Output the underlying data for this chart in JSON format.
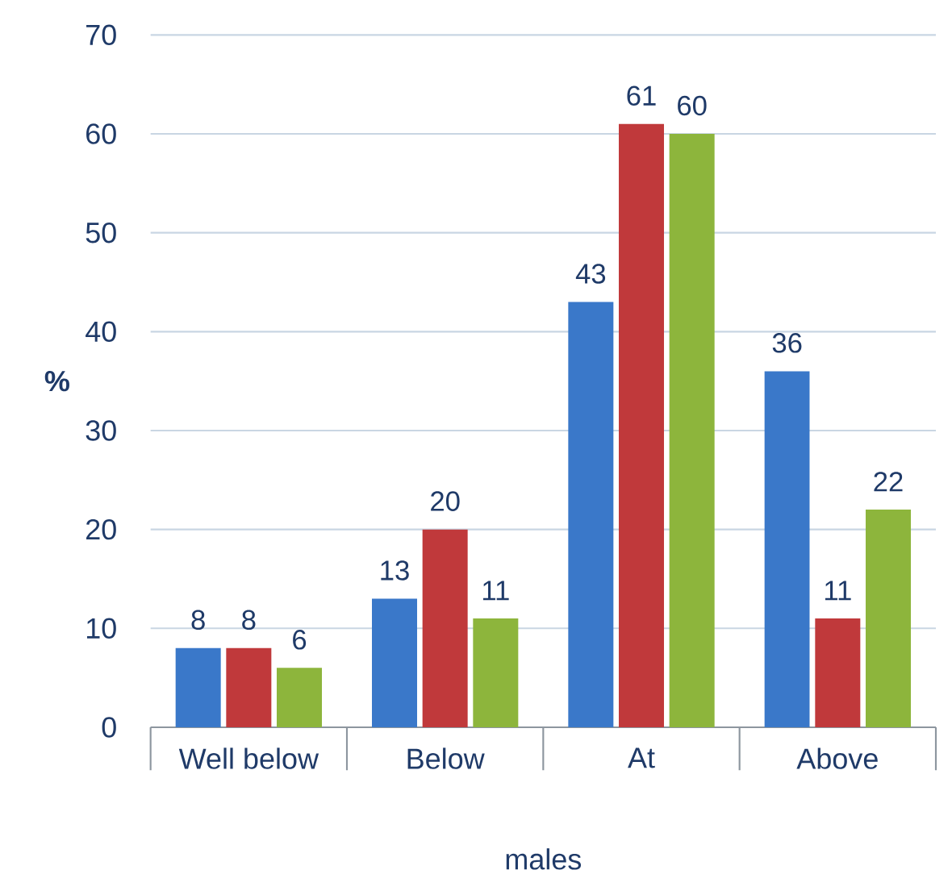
{
  "chart_data": {
    "type": "bar",
    "xlabel": "males",
    "ylabel": "%",
    "categories": [
      "Well below",
      "Below",
      "At",
      "Above"
    ],
    "series": [
      {
        "color": "#3a78c9",
        "values": [
          8,
          13,
          43,
          36
        ]
      },
      {
        "color": "#c0393b",
        "values": [
          8,
          20,
          61,
          11
        ]
      },
      {
        "color": "#8db53c",
        "values": [
          6,
          11,
          60,
          22
        ]
      }
    ],
    "ylim": [
      0,
      70
    ],
    "yticks": [
      0,
      10,
      20,
      30,
      40,
      50,
      60,
      70
    ],
    "grid": "y",
    "data_labels": true
  }
}
